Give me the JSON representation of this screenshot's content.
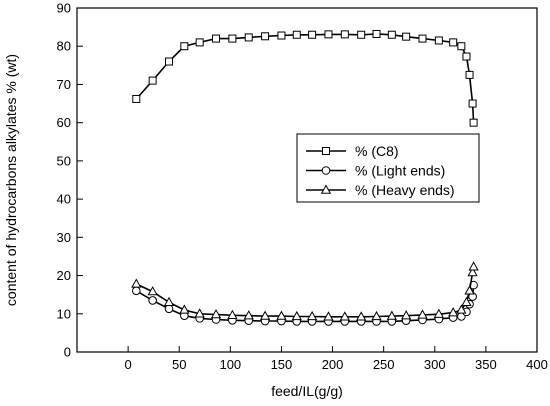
{
  "chart_data": {
    "type": "line",
    "xlabel": "feed/IL(g/g)",
    "ylabel": "content of hydrocarbons alkylates % (wt)",
    "xlim": [
      -50,
      400
    ],
    "ylim": [
      0,
      90
    ],
    "xticks": [
      0,
      50,
      100,
      150,
      200,
      250,
      300,
      350,
      400
    ],
    "yticks": [
      0,
      10,
      20,
      30,
      40,
      50,
      60,
      70,
      80,
      90
    ],
    "grid": false,
    "legend": "center-right",
    "series": [
      {
        "name": "% (C8)",
        "marker": "square",
        "x": [
          8,
          24,
          40,
          55,
          70,
          86,
          102,
          118,
          134,
          150,
          165,
          180,
          196,
          212,
          228,
          243,
          258,
          272,
          288,
          304,
          318,
          326,
          331,
          334,
          337,
          338
        ],
        "y": [
          66.2,
          71,
          76,
          80,
          81,
          82,
          82,
          82.3,
          82.6,
          82.8,
          83,
          83,
          83.1,
          83.1,
          83,
          83.2,
          83,
          82.5,
          82,
          81.5,
          81,
          80,
          77.3,
          72.5,
          65,
          60
        ]
      },
      {
        "name": "% (Light ends)",
        "marker": "circle",
        "x": [
          8,
          24,
          40,
          55,
          70,
          86,
          102,
          118,
          134,
          150,
          165,
          180,
          196,
          212,
          228,
          243,
          258,
          272,
          288,
          304,
          318,
          326,
          331,
          334,
          337,
          338
        ],
        "y": [
          16,
          13.5,
          11.3,
          9.5,
          8.8,
          8.5,
          8.3,
          8.2,
          8.1,
          8.1,
          8,
          8,
          8,
          8,
          8,
          8,
          8,
          8.2,
          8.4,
          8.6,
          9,
          9.3,
          10.5,
          12.5,
          14.5,
          17.5
        ]
      },
      {
        "name": "% (Heavy ends)",
        "marker": "triangle",
        "x": [
          8,
          24,
          40,
          55,
          70,
          86,
          102,
          118,
          134,
          150,
          165,
          180,
          196,
          212,
          228,
          243,
          258,
          272,
          288,
          304,
          318,
          326,
          331,
          334,
          337,
          338
        ],
        "y": [
          17.8,
          15.8,
          13,
          11,
          10,
          9.8,
          9.6,
          9.5,
          9.4,
          9.4,
          9.3,
          9.3,
          9.2,
          9.2,
          9.2,
          9.3,
          9.4,
          9.5,
          9.7,
          9.9,
          10.3,
          11,
          13,
          16,
          20.8,
          22.3
        ]
      }
    ]
  }
}
